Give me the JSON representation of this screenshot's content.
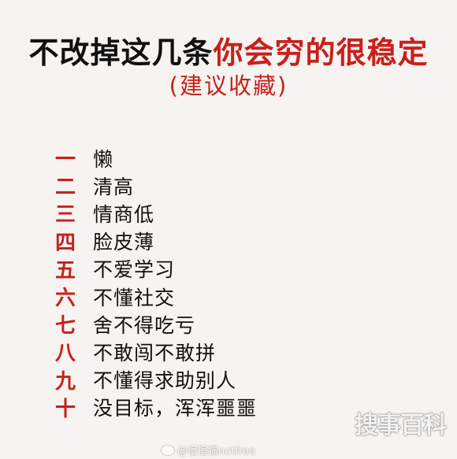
{
  "title": {
    "black": "不改掉这几条",
    "red": "你会穷的很稳定"
  },
  "subtitle": "(建议收藏)",
  "items": [
    {
      "num": "一",
      "text": "懒"
    },
    {
      "num": "二",
      "text": "清高"
    },
    {
      "num": "三",
      "text": "情商低"
    },
    {
      "num": "四",
      "text": "脸皮薄"
    },
    {
      "num": "五",
      "text": "不爱学习"
    },
    {
      "num": "六",
      "text": "不懂社交"
    },
    {
      "num": "七",
      "text": "舍不得吃亏"
    },
    {
      "num": "八",
      "text": "不敢闯不敢拼"
    },
    {
      "num": "九",
      "text": "不懂得求助别人"
    },
    {
      "num": "十",
      "text": "没目标，浑浑噩噩"
    }
  ],
  "watermark": {
    "logo": "搜事百科",
    "weibo": "@慢慢猫notfree"
  },
  "colors": {
    "accent": "#c8201c",
    "text": "#111111",
    "background": "#f6f3f0"
  }
}
